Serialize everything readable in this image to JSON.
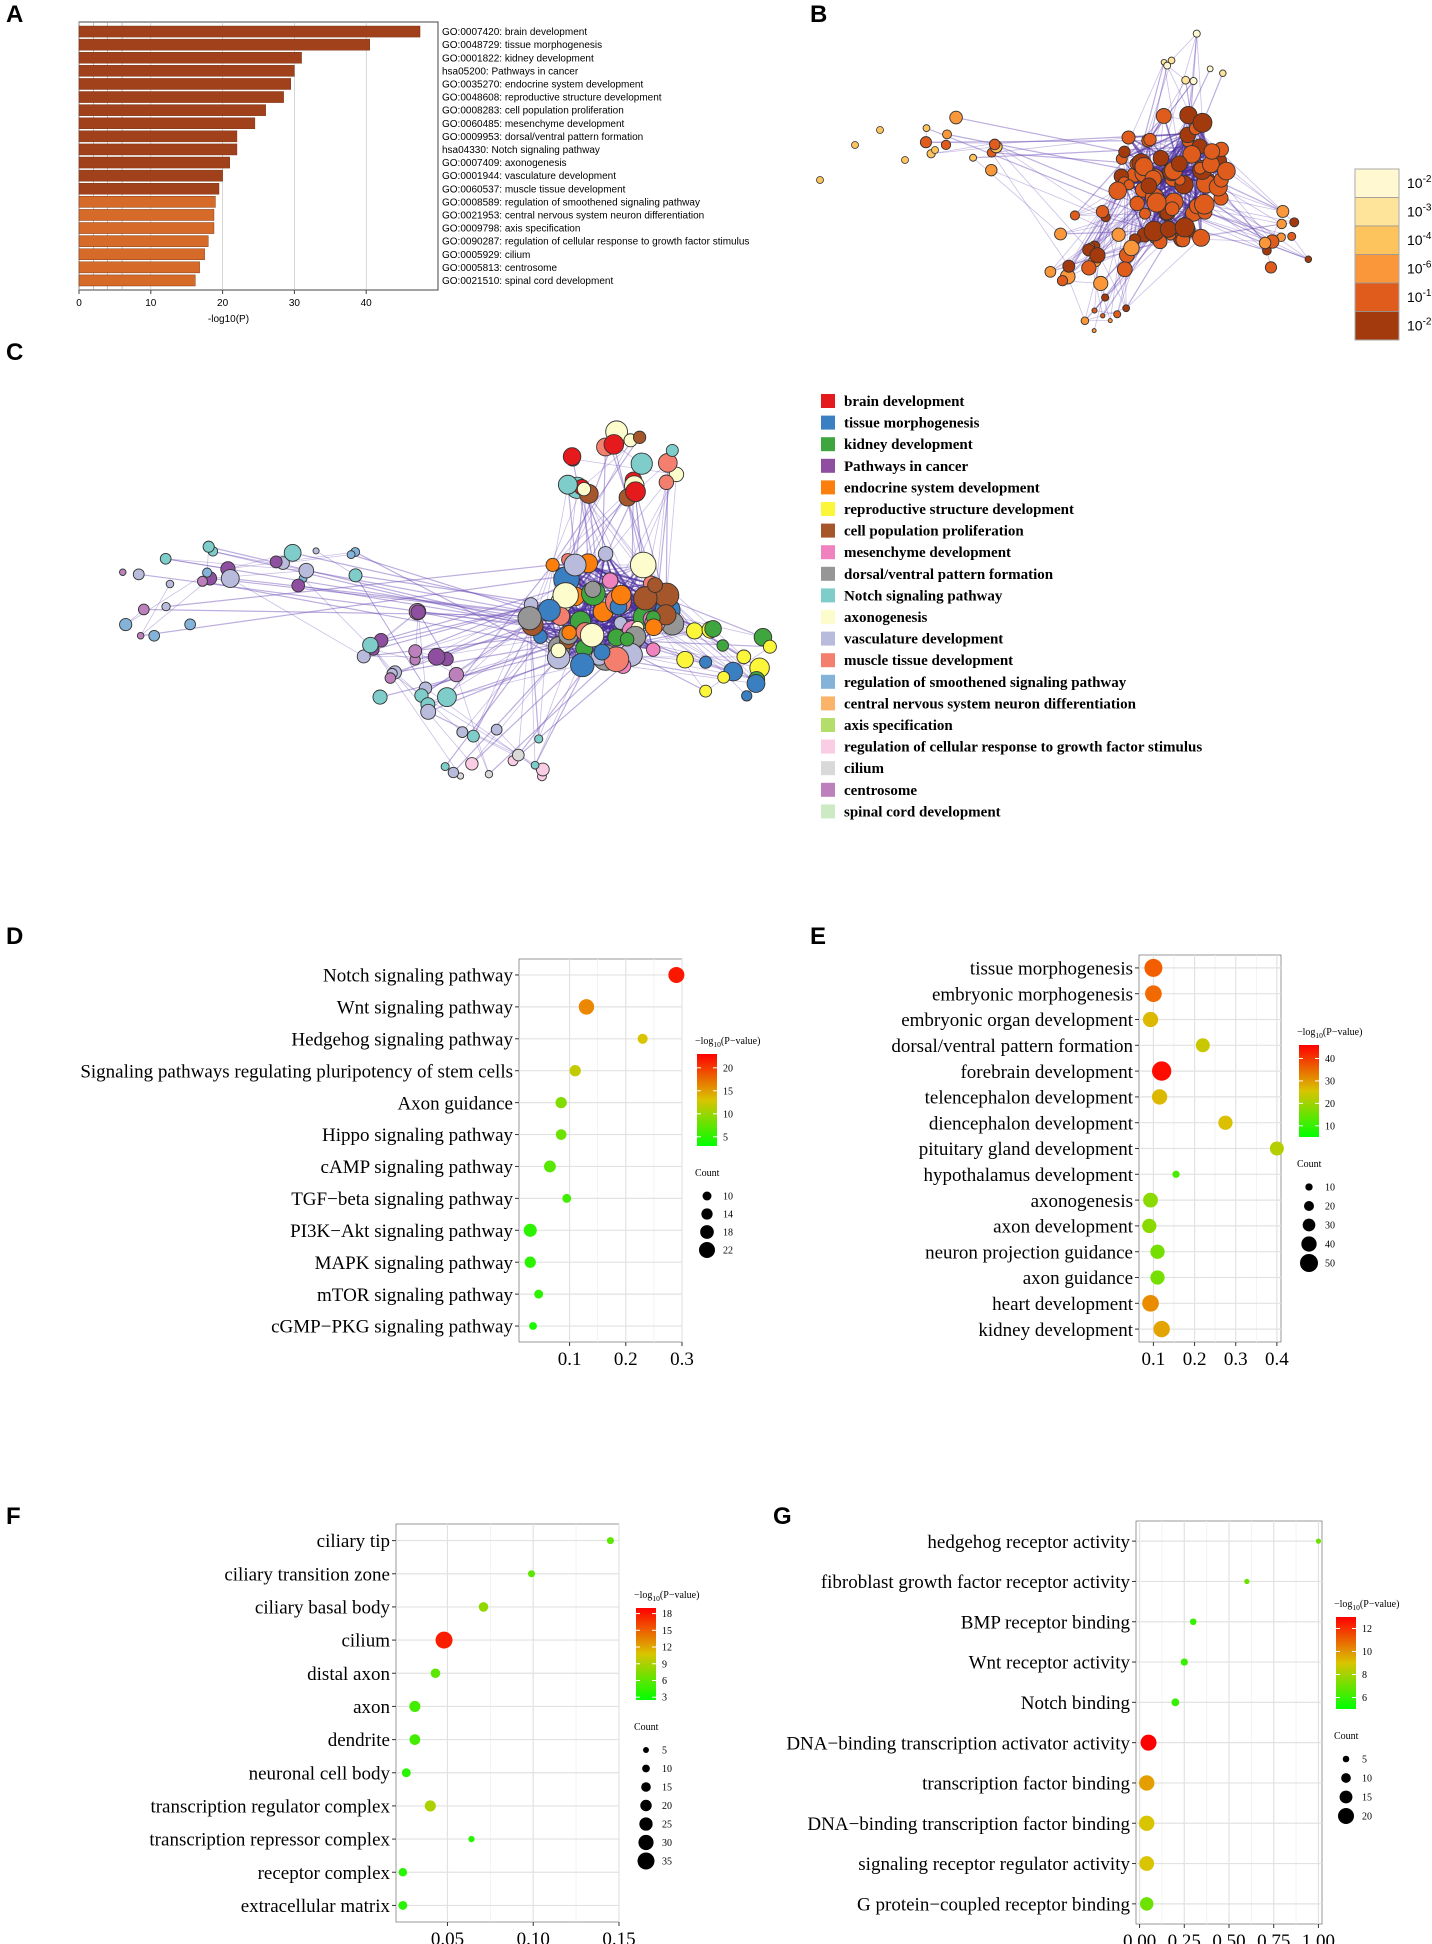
{
  "panel_labels": [
    "A",
    "B",
    "C",
    "D",
    "E",
    "F",
    "G"
  ],
  "colors": {
    "A_bar_dark": "#a0411c",
    "A_bar_light": "#d66a29",
    "edge": "#6a4bb5",
    "pval_scale": [
      "#fff8d0",
      "#fde49a",
      "#fdc35c",
      "#f9973a",
      "#df5c1c",
      "#a23a0e"
    ]
  },
  "chart_data": [
    {
      "panel": "A",
      "type": "bar",
      "orientation": "horizontal",
      "xlabel": "-log10(P)",
      "xticks": [
        0,
        10,
        20,
        30,
        40
      ],
      "xlim": [
        0,
        50
      ],
      "categories": [
        "GO:0007420: brain development",
        "GO:0048729: tissue morphogenesis",
        "GO:0001822: kidney development",
        "hsa05200: Pathways in cancer",
        "GO:0035270: endocrine system development",
        "GO:0048608: reproductive structure development",
        "GO:0008283: cell population proliferation",
        "GO:0060485: mesenchyme development",
        "GO:0009953: dorsal/ventral pattern formation",
        "hsa04330: Notch signaling pathway",
        "GO:0007409: axonogenesis",
        "GO:0001944: vasculature development",
        "GO:0060537: muscle tissue development",
        "GO:0008589: regulation of smoothened signaling pathway",
        "GO:0021953: central nervous system neuron differentiation",
        "GO:0009798: axis specification",
        "GO:0090287: regulation of cellular response to growth factor stimulus",
        "GO:0005929: cilium",
        "GO:0005813: centrosome",
        "GO:0021510: spinal cord development"
      ],
      "values": [
        47.5,
        40.5,
        31,
        30,
        29.5,
        28.5,
        26,
        24.5,
        22,
        22,
        21,
        20,
        19.5,
        19,
        18.8,
        18.8,
        18,
        17.5,
        16.8,
        16.2
      ]
    },
    {
      "panel": "B",
      "type": "network",
      "legend_title": "",
      "legend_labels": [
        "10-2",
        "10-3",
        "10-4",
        "10-6",
        "10-10",
        "10-20"
      ],
      "legend_bases": [
        "10",
        "10",
        "10",
        "10",
        "10",
        "10"
      ],
      "legend_exponents": [
        "-2",
        "-3",
        "-4",
        "-6",
        "-10",
        "-20"
      ]
    },
    {
      "panel": "C",
      "type": "network",
      "legend": [
        {
          "label": "brain development",
          "color": "#e41a1c"
        },
        {
          "label": "tissue morphogenesis",
          "color": "#3a7fc1"
        },
        {
          "label": "kidney development",
          "color": "#3fa63f"
        },
        {
          "label": "Pathways in cancer",
          "color": "#8e4fa0"
        },
        {
          "label": "endocrine system development",
          "color": "#fc7f0e"
        },
        {
          "label": "reproductive structure development",
          "color": "#fbf63a"
        },
        {
          "label": "cell population proliferation",
          "color": "#a5562a"
        },
        {
          "label": "mesenchyme development",
          "color": "#f083bf"
        },
        {
          "label": "dorsal/ventral pattern formation",
          "color": "#969696"
        },
        {
          "label": "Notch signaling pathway",
          "color": "#7fcdca"
        },
        {
          "label": "axonogenesis",
          "color": "#fcfccc"
        },
        {
          "label": "vasculature development",
          "color": "#b9bbdc"
        },
        {
          "label": "muscle tissue development",
          "color": "#f47f6f"
        },
        {
          "label": "regulation of smoothened signaling pathway",
          "color": "#83b3d8"
        },
        {
          "label": "central nervous system neuron differentiation",
          "color": "#fbb36a"
        },
        {
          "label": "axis specification",
          "color": "#b3de69"
        },
        {
          "label": "regulation of cellular response to growth factor stimulus",
          "color": "#fbcde4"
        },
        {
          "label": "cilium",
          "color": "#d9d9d9"
        },
        {
          "label": "centrosome",
          "color": "#bc80bd"
        },
        {
          "label": "spinal cord development",
          "color": "#ccebc5"
        }
      ]
    },
    {
      "panel": "D",
      "type": "scatter",
      "xticks": [
        "0.1",
        "0.2",
        "0.3"
      ],
      "xtick_values": [
        0.1,
        0.2,
        0.3
      ],
      "xlim": [
        0.01,
        0.3
      ],
      "color_title": "−log10(P−value)",
      "color_title_base": "−log",
      "color_title_sub": "10",
      "color_title_rest": "(P−value)",
      "color_ticks": [
        "20",
        "15",
        "10",
        "5"
      ],
      "color_tick_values": [
        20,
        15,
        10,
        5
      ],
      "color_range": [
        3,
        23
      ],
      "size_title": "Count",
      "size_ticks": [
        "10",
        "14",
        "18",
        "22"
      ],
      "size_tick_values": [
        10,
        14,
        18,
        22
      ],
      "categories": [
        "Notch signaling pathway",
        "Wnt signaling pathway",
        "Hedgehog signaling pathway",
        "Signaling pathways regulating pluripotency of stem cells",
        "Axon guidance",
        "Hippo signaling pathway",
        "cAMP signaling pathway",
        "TGF−beta signaling pathway",
        "PI3K−Akt signaling pathway",
        "MAPK signaling pathway",
        "mTOR signaling pathway",
        "cGMP−PKG signaling pathway"
      ],
      "x": [
        0.29,
        0.13,
        0.23,
        0.11,
        0.085,
        0.085,
        0.065,
        0.095,
        0.03,
        0.03,
        0.045,
        0.035
      ],
      "pval": [
        22,
        17,
        13,
        12,
        9,
        8,
        7,
        6,
        5,
        5,
        5,
        4
      ],
      "count": [
        22,
        21,
        12,
        14,
        14,
        13,
        15,
        10,
        17,
        14,
        10,
        8
      ]
    },
    {
      "panel": "E",
      "type": "scatter",
      "xticks": [
        "0.1",
        "0.2",
        "0.3",
        "0.4"
      ],
      "xtick_values": [
        0.1,
        0.2,
        0.3,
        0.4
      ],
      "xlim": [
        0.065,
        0.41
      ],
      "color_title": "−log10(P−value)",
      "color_title_base": "−log",
      "color_title_sub": "10",
      "color_title_rest": "(P−value)",
      "color_ticks": [
        "40",
        "30",
        "20",
        "10"
      ],
      "color_tick_values": [
        40,
        30,
        20,
        10
      ],
      "color_range": [
        5,
        46
      ],
      "size_title": "Count",
      "size_ticks": [
        "10",
        "20",
        "30",
        "40",
        "50"
      ],
      "size_tick_values": [
        10,
        20,
        30,
        40,
        50
      ],
      "categories": [
        "tissue morphogenesis",
        "embryonic morphogenesis",
        "embryonic organ development",
        "dorsal/ventral pattern formation",
        "forebrain development",
        "telencephalon development",
        "diencephalon development",
        "pituitary gland development",
        "hypothalamus development",
        "axonogenesis",
        "axon development",
        "neuron projection guidance",
        "axon guidance",
        "heart development",
        "kidney development"
      ],
      "x": [
        0.1,
        0.1,
        0.093,
        0.22,
        0.12,
        0.115,
        0.275,
        0.4,
        0.155,
        0.093,
        0.09,
        0.11,
        0.11,
        0.093,
        0.12
      ],
      "pval": [
        38,
        37,
        27,
        24,
        45,
        27,
        26,
        22,
        12,
        18,
        18,
        16,
        16,
        33,
        30
      ],
      "count": [
        50,
        45,
        40,
        35,
        55,
        40,
        36,
        35,
        10,
        38,
        36,
        36,
        36,
        45,
        44
      ]
    },
    {
      "panel": "F",
      "type": "scatter",
      "xticks": [
        "0.05",
        "0.10",
        "0.15"
      ],
      "xtick_values": [
        0.05,
        0.1,
        0.15
      ],
      "xlim": [
        0.02,
        0.15
      ],
      "color_title": "−log10(P−value)",
      "color_title_base": "−log",
      "color_title_sub": "10",
      "color_title_rest": "(P−value)",
      "color_ticks": [
        "18",
        "15",
        "12",
        "9",
        "6",
        "3"
      ],
      "color_tick_values": [
        18,
        15,
        12,
        9,
        6,
        3
      ],
      "color_range": [
        2.5,
        19
      ],
      "size_title": "Count",
      "size_ticks": [
        "5",
        "10",
        "15",
        "20",
        "25",
        "30",
        "35"
      ],
      "size_tick_values": [
        5,
        10,
        15,
        20,
        25,
        30,
        35
      ],
      "categories": [
        "ciliary tip",
        "ciliary transition zone",
        "ciliary basal body",
        "cilium",
        "distal axon",
        "axon",
        "dendrite",
        "neuronal cell body",
        "transcription regulator complex",
        "transcription repressor complex",
        "receptor complex",
        "extracellular matrix"
      ],
      "x": [
        0.145,
        0.099,
        0.071,
        0.048,
        0.043,
        0.031,
        0.031,
        0.026,
        0.04,
        0.064,
        0.024,
        0.024
      ],
      "pval": [
        6,
        6,
        8,
        18,
        6,
        5,
        5,
        4,
        9,
        4,
        4,
        4
      ],
      "count": [
        8,
        8,
        15,
        35,
        15,
        19,
        18,
        13,
        19,
        6,
        12,
        13
      ]
    },
    {
      "panel": "G",
      "type": "scatter",
      "xticks": [
        "0.00",
        "0.25",
        "0.50",
        "0.75",
        "1.00"
      ],
      "xtick_values": [
        0,
        0.25,
        0.5,
        0.75,
        1.0
      ],
      "xlim": [
        -0.02,
        1.02
      ],
      "color_title": "−log10(P−value)",
      "color_title_base": "−log",
      "color_title_sub": "10",
      "color_title_rest": "(P−value)",
      "color_ticks": [
        "12",
        "10",
        "8",
        "6"
      ],
      "color_tick_values": [
        12,
        10,
        8,
        6
      ],
      "color_range": [
        5,
        13
      ],
      "size_title": "Count",
      "size_ticks": [
        "5",
        "10",
        "15",
        "20"
      ],
      "size_tick_values": [
        5,
        10,
        15,
        20
      ],
      "categories": [
        "hedgehog receptor activity",
        "fibroblast growth factor receptor activity",
        "BMP receptor binding",
        "Wnt receptor activity",
        "Notch binding",
        "DNA−binding transcription activator activity",
        "transcription factor binding",
        "DNA−binding transcription factor binding",
        "signaling receptor regulator activity",
        "G protein−coupled receptor binding"
      ],
      "x": [
        1.0,
        0.6,
        0.3,
        0.25,
        0.2,
        0.05,
        0.04,
        0.04,
        0.04,
        0.04
      ],
      "pval": [
        7,
        7,
        6,
        6,
        6,
        13,
        10,
        9,
        9,
        7
      ],
      "count": [
        3,
        3,
        5,
        6,
        7,
        20,
        19,
        19,
        18,
        16
      ]
    }
  ]
}
